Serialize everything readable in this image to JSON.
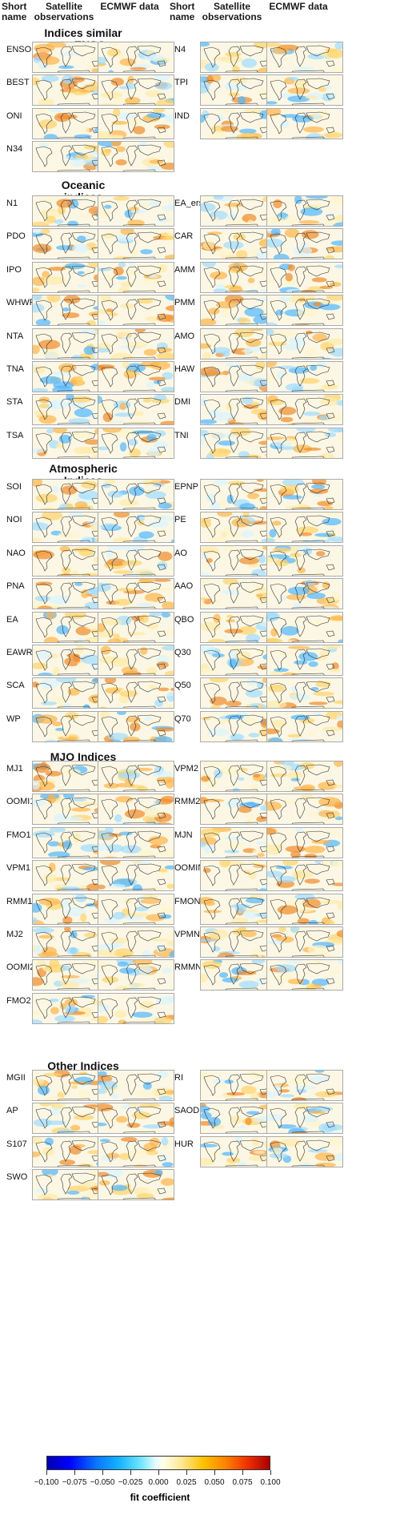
{
  "headers": {
    "short_name": "Short\nname",
    "satellite": "Satellite\nobservations",
    "ecmwf": "ECMWF data"
  },
  "sections": [
    {
      "title": "Indices similar\nto ENSO",
      "left": [
        "ENSO",
        "BEST",
        "ONI",
        "N34"
      ],
      "right": [
        "N4",
        "TPI",
        "IND"
      ]
    },
    {
      "title": "Oceanic\nindices",
      "left": [
        "N1",
        "PDO",
        "IPO",
        "WHWP",
        "NTA",
        "TNA",
        "STA",
        "TSA"
      ],
      "right": [
        "EA_ersst",
        "CAR",
        "AMM",
        "PMM",
        "AMO",
        "HAW",
        "DMI",
        "TNI"
      ]
    },
    {
      "title": "Atmospheric\nIndices",
      "left": [
        "SOI",
        "NOI",
        "NAO",
        "PNA",
        "EA",
        "EAWR",
        "SCA",
        "WP"
      ],
      "right": [
        "EPNP",
        "PE",
        "AO",
        "AAO",
        "QBO",
        "Q30",
        "Q50",
        "Q70"
      ]
    },
    {
      "title": "MJO Indices",
      "left": [
        "MJ1",
        "OOMI1",
        "FMO1",
        "VPM1",
        "RMM1",
        "MJ2",
        "OOMI2",
        "FMO2"
      ],
      "right": [
        "VPM2",
        "RMM2",
        "MJN",
        "OOMIN",
        "FMON",
        "VPMN",
        "RMMN"
      ]
    },
    {
      "title": "Other Indices",
      "left": [
        "MGII",
        "AP",
        "S107",
        "SWO"
      ],
      "right": [
        "RI",
        "SAOD",
        "HUR"
      ]
    }
  ],
  "colorbar": {
    "ticks": [
      "−0.100",
      "−0.075",
      "−0.050",
      "−0.025",
      "0.000",
      "0.025",
      "0.050",
      "0.075",
      "0.100"
    ],
    "label": "fit coefficient",
    "colors": {
      "strong_negative": "#0000ad",
      "negative": "#13b2ff",
      "neutral": "#ffffea",
      "positive": "#ffc300",
      "strong_positive": "#a80000"
    }
  }
}
